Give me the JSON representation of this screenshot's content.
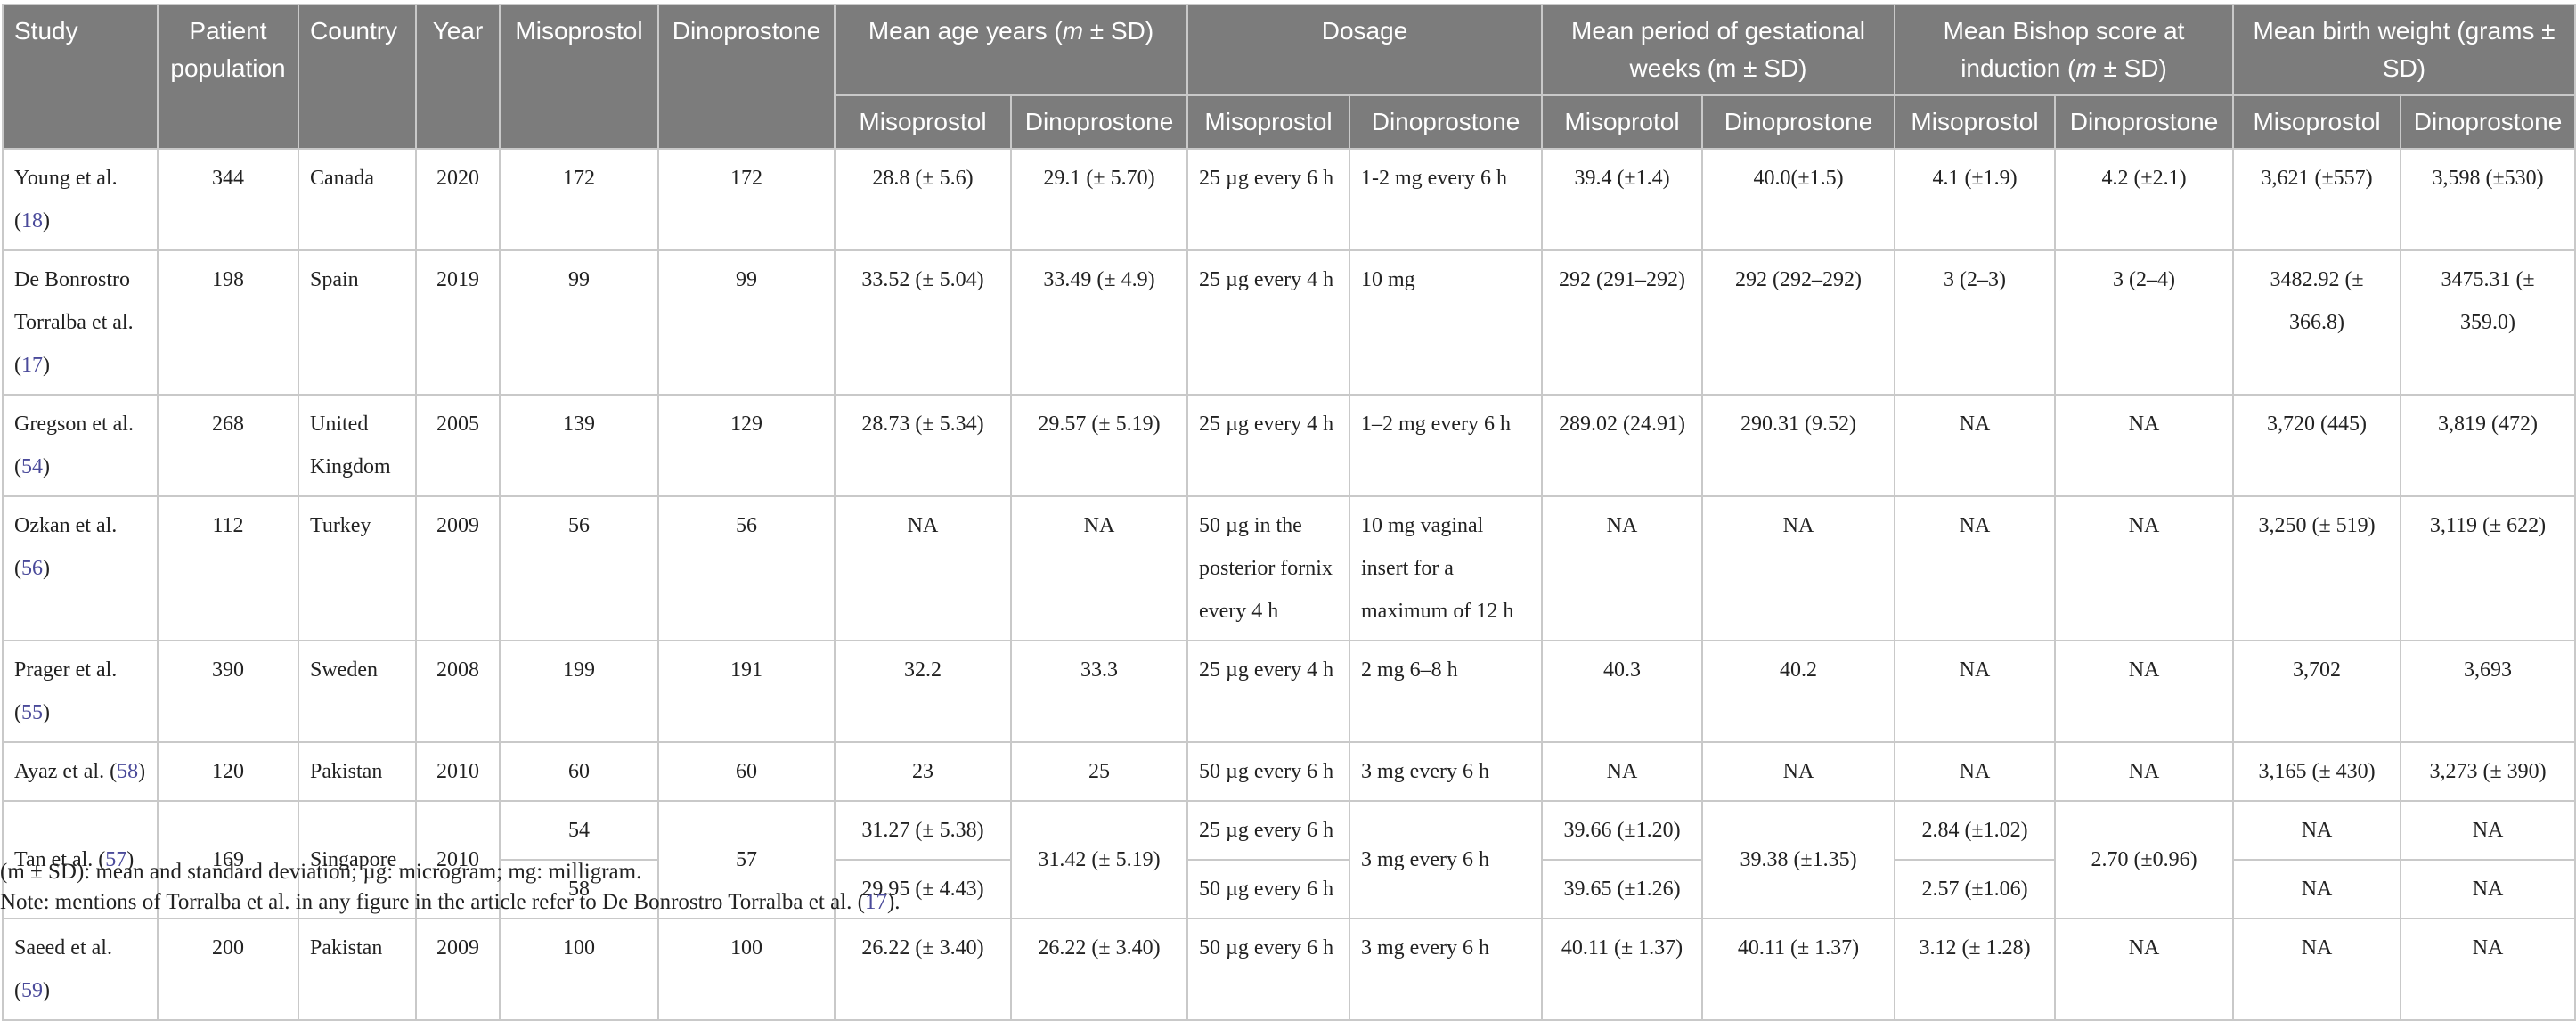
{
  "table": {
    "headers": {
      "study": "Study",
      "patient_population": "Patient population",
      "country": "Country",
      "year": "Year",
      "misoprostol": "Misoprostol",
      "dinoprostone": "Dinoprostone",
      "age_group_pre": "Mean age years (",
      "age_group_m": "m",
      "age_group_post": " ± SD)",
      "dosage_group": "Dosage",
      "gest_group": "Mean period of gestational weeks (m ± SD)",
      "bishop_group_pre": "Mean Bishop score at induction (",
      "bishop_group_m": "m",
      "bishop_group_post": " ± SD)",
      "weight_group": "Mean birth weight (grams ± SD)",
      "sub": [
        "Misoprostol",
        "Dinoprostone",
        "Misoprostol",
        "Dinoprostone",
        "Misoprotol",
        "Dinoprostone",
        "Misoprostol",
        "Dinoprostone",
        "Misoprostol",
        "Dinoprostone"
      ]
    },
    "rows": [
      {
        "study": "Young et al. (",
        "ref": "18",
        "study_end": ")",
        "pop": "344",
        "country": "Canada",
        "year": "2020",
        "miso_n": "172",
        "dino_n": "172",
        "age_m": "28.8 (± 5.6)",
        "age_d": "29.1 (± 5.70)",
        "dose_m": "25 µg every 6 h",
        "dose_d": "1-2 mg every 6 h",
        "gest_m": "39.4 (±1.4)",
        "gest_d": "40.0(±1.5)",
        "bishop_m": "4.1 (±1.9)",
        "bishop_d": "4.2 (±2.1)",
        "bw_m": "3,621 (±557)",
        "bw_d": "3,598 (±530)"
      },
      {
        "study": "De Bonrostro Torralba et al. (",
        "ref": "17",
        "study_end": ")",
        "pop": "198",
        "country": "Spain",
        "year": "2019",
        "miso_n": "99",
        "dino_n": "99",
        "age_m": "33.52 (± 5.04)",
        "age_d": "33.49 (± 4.9)",
        "dose_m": "25 µg every 4 h",
        "dose_d": "10 mg",
        "gest_m": "292 (291–292)",
        "gest_d": "292 (292–292)",
        "bishop_m": "3 (2–3)",
        "bishop_d": "3 (2–4)",
        "bw_m": "3482.92 (± 366.8)",
        "bw_d": "3475.31 (± 359.0)"
      },
      {
        "study": "Gregson et al. (",
        "ref": "54",
        "study_end": ")",
        "pop": "268",
        "country": "United Kingdom",
        "year": "2005",
        "miso_n": "139",
        "dino_n": "129",
        "age_m": "28.73 (± 5.34)",
        "age_d": "29.57 (± 5.19)",
        "dose_m": "25 µg every 4 h",
        "dose_d": "1–2 mg every 6 h",
        "gest_m": "289.02 (24.91)",
        "gest_d": "290.31 (9.52)",
        "bishop_m": "NA",
        "bishop_d": "NA",
        "bw_m": "3,720 (445)",
        "bw_d": "3,819 (472)"
      },
      {
        "study": "Ozkan et al. (",
        "ref": "56",
        "study_end": ")",
        "pop": "112",
        "country": "Turkey",
        "year": "2009",
        "miso_n": "56",
        "dino_n": "56",
        "age_m": "NA",
        "age_d": "NA",
        "dose_m": "50 µg in the posterior fornix every 4 h",
        "dose_d": "10 mg vaginal insert for a maximum of 12 h",
        "gest_m": "NA",
        "gest_d": "NA",
        "bishop_m": "NA",
        "bishop_d": "NA",
        "bw_m": "3,250 (± 519)",
        "bw_d": "3,119 (± 622)"
      },
      {
        "study": "Prager et al. (",
        "ref": "55",
        "study_end": ")",
        "pop": "390",
        "country": "Sweden",
        "year": "2008",
        "miso_n": "199",
        "dino_n": "191",
        "age_m": "32.2",
        "age_d": "33.3",
        "dose_m": "25 µg every 4 h",
        "dose_d": "2 mg 6–8 h",
        "gest_m": "40.3",
        "gest_d": "40.2",
        "bishop_m": "NA",
        "bishop_d": "NA",
        "bw_m": "3,702",
        "bw_d": "3,693"
      },
      {
        "study": "Ayaz et al. (",
        "ref": "58",
        "study_end": ")",
        "pop": "120",
        "country": "Pakistan",
        "year": "2010",
        "miso_n": "60",
        "dino_n": "60",
        "age_m": "23",
        "age_d": "25",
        "dose_m": "50 µg every 6 h",
        "dose_d": "3 mg every 6 h",
        "gest_m": "NA",
        "gest_d": "NA",
        "bishop_m": "NA",
        "bishop_d": "NA",
        "bw_m": "3,165 (± 430)",
        "bw_d": "3,273 (± 390)"
      }
    ],
    "tan": {
      "study": "Tan et al. (",
      "ref": "57",
      "study_end": ")",
      "pop": "169",
      "country": "Singapore",
      "year": "2010",
      "miso_n_a": "54",
      "miso_n_b": "58",
      "dino_n": "57",
      "age_m_a": "31.27 (± 5.38)",
      "age_m_b": "29.95 (± 4.43)",
      "age_d": "31.42 (± 5.19)",
      "dose_m_a": "25 µg every 6 h",
      "dose_m_b": "50 µg every 6 h",
      "dose_d": "3 mg every 6 h",
      "gest_m_a": "39.66 (±1.20)",
      "gest_m_b": "39.65 (±1.26)",
      "gest_d": "39.38 (±1.35)",
      "bishop_m_a": "2.84 (±1.02)",
      "bishop_m_b": "2.57 (±1.06)",
      "bishop_d": "2.70 (±0.96)",
      "bw_m_a": "NA",
      "bw_d_a": "NA",
      "bw_m_b": "NA",
      "bw_d_b": "NA"
    },
    "saeed": {
      "study": "Saeed et al. (",
      "ref": "59",
      "study_end": ")",
      "pop": "200",
      "country": "Pakistan",
      "year": "2009",
      "miso_n": "100",
      "dino_n": "100",
      "age_m": "26.22 (± 3.40)",
      "age_d": "26.22 (± 3.40)",
      "dose_m": "50 µg every 6 h",
      "dose_d": "3 mg every 6 h",
      "gest_m": "40.11 (± 1.37)",
      "gest_d": "40.11 (± 1.37)",
      "bishop_m": "3.12 (± 1.28)",
      "bishop_d": "NA",
      "bw_m": "NA",
      "bw_d": "NA"
    }
  },
  "footnotes": {
    "abbrev": "(m ± SD): mean and standard deviation; µg: microgram; mg: milligram.",
    "note_pre": "Note: mentions of Torralba et al. in any figure in the article refer to De Bonrostro Torralba et al. (",
    "note_ref": "17",
    "note_post": ")."
  }
}
